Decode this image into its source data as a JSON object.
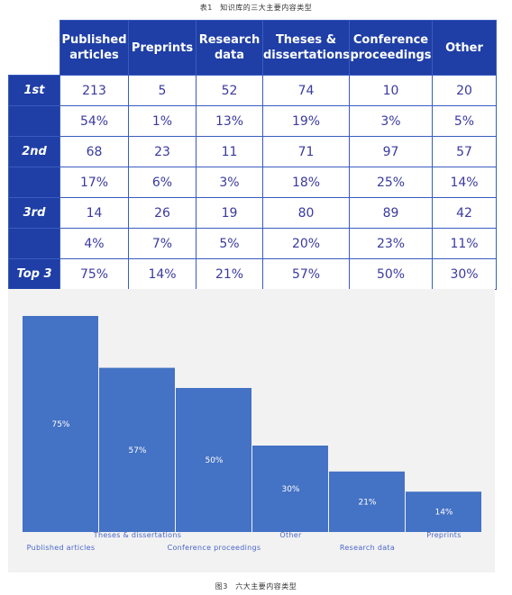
{
  "table_caption": "表1　知识库的三大主要内容类型",
  "figure_caption": "图3　六大主要内容类型",
  "table": {
    "headers": [
      "Published articles",
      "Preprints",
      "Research data",
      "Theses & dissertations",
      "Conference proceedings",
      "Other"
    ],
    "rows": [
      {
        "label": "1st",
        "values": [
          "213",
          "5",
          "52",
          "74",
          "10",
          "20"
        ]
      },
      {
        "label": "",
        "values": [
          "54%",
          "1%",
          "13%",
          "19%",
          "3%",
          "5%"
        ]
      },
      {
        "label": "2nd",
        "values": [
          "68",
          "23",
          "11",
          "71",
          "97",
          "57"
        ]
      },
      {
        "label": "",
        "values": [
          "17%",
          "6%",
          "3%",
          "18%",
          "25%",
          "14%"
        ]
      },
      {
        "label": "3rd",
        "values": [
          "14",
          "26",
          "19",
          "80",
          "89",
          "42"
        ]
      },
      {
        "label": "",
        "values": [
          "4%",
          "7%",
          "5%",
          "20%",
          "23%",
          "11%"
        ]
      },
      {
        "label": "Top 3",
        "values": [
          "75%",
          "14%",
          "21%",
          "57%",
          "50%",
          "30%"
        ]
      }
    ]
  },
  "chart_data": {
    "type": "bar",
    "categories": [
      "Published articles",
      "Theses & dissertations",
      "Conference proceedings",
      "Other",
      "Research data",
      "Preprints"
    ],
    "values": [
      75,
      57,
      50,
      30,
      21,
      14
    ],
    "value_labels": [
      "75%",
      "57%",
      "50%",
      "30%",
      "21%",
      "14%"
    ],
    "ylim": [
      0,
      75
    ],
    "bar_color": "#4472c4",
    "grid": false,
    "legend": "none"
  }
}
